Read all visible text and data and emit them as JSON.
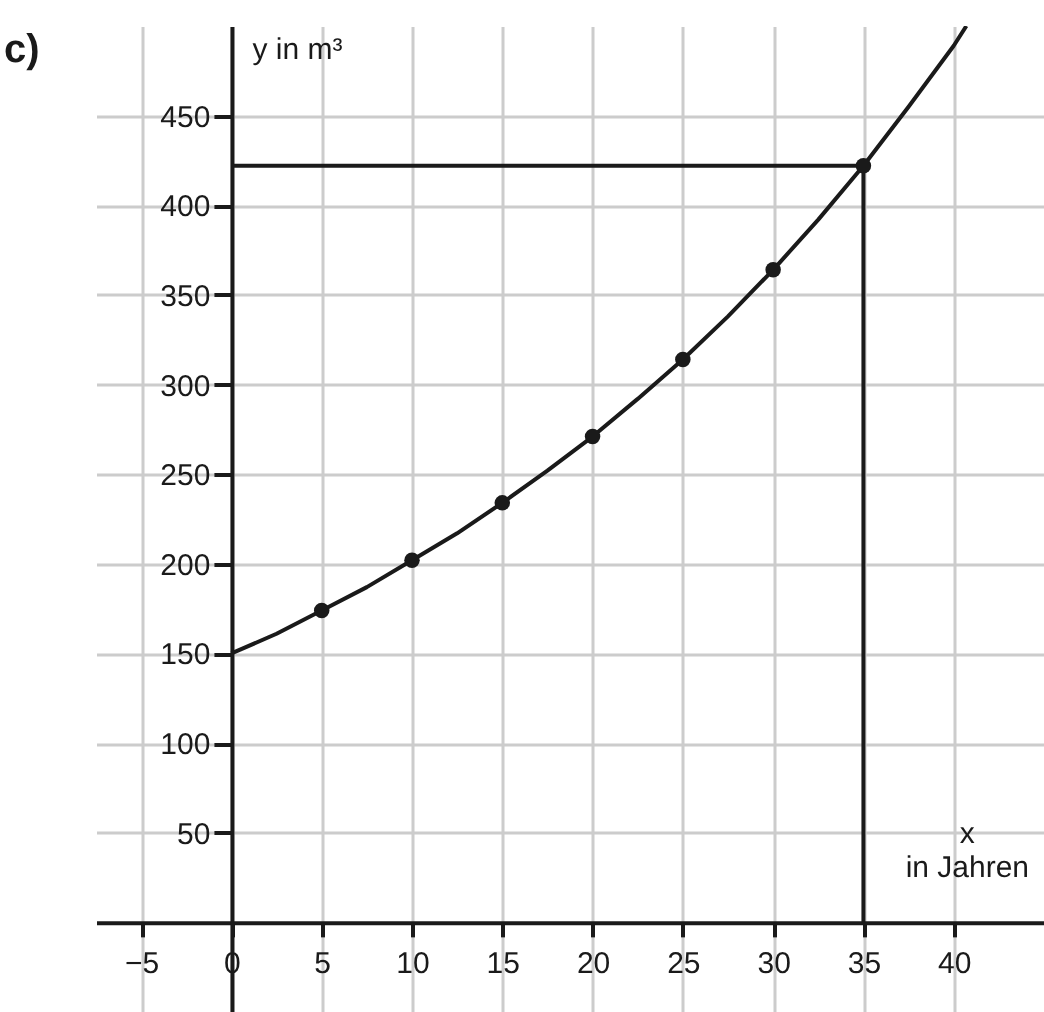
{
  "chart_data": {
    "type": "line",
    "xlabel": "x in Jahren",
    "ylabel": "y in m³",
    "annotations": [
      "c)"
    ],
    "xlim": [
      -7.5,
      45
    ],
    "ylim": [
      -50,
      500
    ],
    "xticks": [
      {
        "value": -5,
        "label": "−5"
      },
      0,
      5,
      10,
      15,
      20,
      25,
      30,
      35,
      40
    ],
    "yticks": [
      50,
      100,
      150,
      200,
      250,
      300,
      350,
      400,
      450
    ],
    "grid": true,
    "series": [
      {
        "type": "line",
        "color": "#1a1a1a",
        "marker": "none",
        "x": [
          0,
          2.5,
          5,
          7.5,
          10,
          12.5,
          15,
          17.5,
          20,
          22.5,
          25,
          27.5,
          30,
          32.5,
          35,
          37.5,
          40,
          40.7
        ],
        "values": [
          150,
          161,
          174,
          187,
          202,
          217,
          234,
          252,
          271,
          292,
          314,
          338,
          364,
          392,
          422,
          455,
          489,
          500
        ]
      },
      {
        "type": "line",
        "color": "#1a1a1a",
        "marker": "none",
        "x": [
          0,
          35,
          35
        ],
        "values": [
          422,
          422,
          0
        ]
      },
      {
        "type": "scatter",
        "color": "#1a1a1a",
        "marker": "circle",
        "x": [
          5,
          10,
          15,
          20,
          25,
          30,
          35
        ],
        "values": [
          174,
          202,
          234,
          271,
          314,
          364,
          422
        ]
      }
    ]
  }
}
